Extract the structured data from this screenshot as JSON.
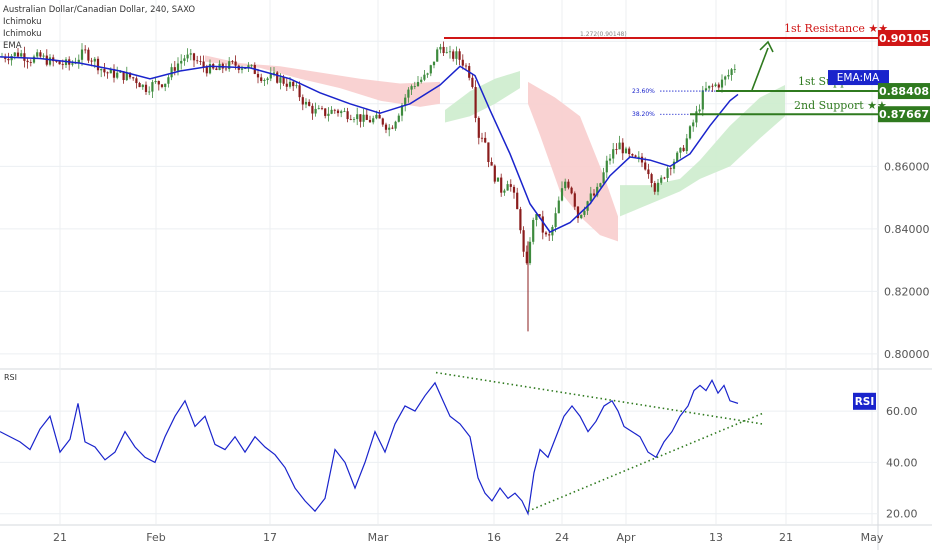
{
  "header": {
    "symbol": "Australian Dollar/Canadian Dollar, 240, SAXO",
    "indicators": [
      "Ichimoku",
      "Ichimoku",
      "EMA"
    ]
  },
  "colors": {
    "up": "#3d8a3d",
    "down": "#8a1c1c",
    "ema": "#1a24cc",
    "resistance": "#d01616",
    "support": "#2f7a1f",
    "cloud_bull": "#cdeccd",
    "cloud_bear": "#f8cdcd",
    "grid": "#eceff2",
    "axis_text": "#555555"
  },
  "chart_data": [
    {
      "type": "candlestick",
      "title": "Australian Dollar/Canadian Dollar, 240, SAXO",
      "ylim": [
        0.7955,
        0.9132
      ],
      "y_ticks": [
        "0.80000",
        "0.82000",
        "0.84000",
        "0.86000"
      ],
      "x_ticks": [
        "21",
        "Feb",
        "17",
        "Mar",
        "16",
        "24",
        "Apr",
        "13",
        "21",
        "May"
      ],
      "close_path": [
        [
          0,
          0.895
        ],
        [
          10,
          0.8955
        ],
        [
          20,
          0.8962
        ],
        [
          30,
          0.8942
        ],
        [
          40,
          0.895
        ],
        [
          50,
          0.8935
        ],
        [
          60,
          0.8928
        ],
        [
          70,
          0.8925
        ],
        [
          80,
          0.8952
        ],
        [
          85,
          0.8965
        ],
        [
          95,
          0.8935
        ],
        [
          105,
          0.89
        ],
        [
          115,
          0.8895
        ],
        [
          125,
          0.889
        ],
        [
          135,
          0.888
        ],
        [
          145,
          0.885
        ],
        [
          155,
          0.8865
        ],
        [
          165,
          0.887
        ],
        [
          175,
          0.892
        ],
        [
          185,
          0.895
        ],
        [
          195,
          0.894
        ],
        [
          205,
          0.8915
        ],
        [
          215,
          0.8905
        ],
        [
          225,
          0.892
        ],
        [
          235,
          0.8925
        ],
        [
          245,
          0.892
        ],
        [
          255,
          0.8905
        ],
        [
          265,
          0.888
        ],
        [
          275,
          0.8885
        ],
        [
          285,
          0.887
        ],
        [
          295,
          0.885
        ],
        [
          305,
          0.88
        ],
        [
          315,
          0.8775
        ],
        [
          325,
          0.877
        ],
        [
          335,
          0.878
        ],
        [
          345,
          0.877
        ],
        [
          355,
          0.8765
        ],
        [
          365,
          0.8745
        ],
        [
          375,
          0.875
        ],
        [
          382,
          0.8745
        ],
        [
          390,
          0.872
        ],
        [
          398,
          0.877
        ],
        [
          405,
          0.882
        ],
        [
          412,
          0.886
        ],
        [
          420,
          0.8875
        ],
        [
          428,
          0.889
        ],
        [
          436,
          0.896
        ],
        [
          442,
          0.899
        ],
        [
          448,
          0.895
        ],
        [
          456,
          0.8955
        ],
        [
          464,
          0.893
        ],
        [
          472,
          0.888
        ],
        [
          478,
          0.87
        ],
        [
          484,
          0.87
        ],
        [
          490,
          0.86
        ],
        [
          496,
          0.856
        ],
        [
          502,
          0.852
        ],
        [
          508,
          0.856
        ],
        [
          514,
          0.85
        ],
        [
          520,
          0.842
        ],
        [
          526,
          0.825
        ],
        [
          530,
          0.837
        ],
        [
          536,
          0.846
        ],
        [
          542,
          0.84
        ],
        [
          548,
          0.836
        ],
        [
          554,
          0.842
        ],
        [
          560,
          0.85
        ],
        [
          566,
          0.856
        ],
        [
          572,
          0.852
        ],
        [
          578,
          0.844
        ],
        [
          584,
          0.847
        ],
        [
          590,
          0.85
        ],
        [
          596,
          0.851
        ],
        [
          602,
          0.856
        ],
        [
          608,
          0.862
        ],
        [
          614,
          0.865
        ],
        [
          620,
          0.867
        ],
        [
          626,
          0.864
        ],
        [
          632,
          0.862
        ],
        [
          638,
          0.862
        ],
        [
          644,
          0.861
        ],
        [
          650,
          0.858
        ],
        [
          656,
          0.852
        ],
        [
          662,
          0.856
        ],
        [
          668,
          0.86
        ],
        [
          674,
          0.862
        ],
        [
          680,
          0.864
        ],
        [
          686,
          0.868
        ],
        [
          692,
          0.873
        ],
        [
          698,
          0.878
        ],
        [
          704,
          0.884
        ],
        [
          710,
          0.885
        ],
        [
          716,
          0.886
        ],
        [
          722,
          0.887
        ],
        [
          728,
          0.889
        ],
        [
          734,
          0.892
        ],
        [
          738,
          0.891
        ]
      ],
      "ema_path": [
        [
          0,
          0.895
        ],
        [
          40,
          0.8945
        ],
        [
          80,
          0.893
        ],
        [
          120,
          0.8905
        ],
        [
          150,
          0.888
        ],
        [
          180,
          0.8905
        ],
        [
          210,
          0.892
        ],
        [
          250,
          0.8915
        ],
        [
          290,
          0.888
        ],
        [
          320,
          0.8835
        ],
        [
          350,
          0.88
        ],
        [
          380,
          0.877
        ],
        [
          410,
          0.88
        ],
        [
          440,
          0.886
        ],
        [
          460,
          0.892
        ],
        [
          475,
          0.889
        ],
        [
          490,
          0.878
        ],
        [
          510,
          0.864
        ],
        [
          530,
          0.848
        ],
        [
          550,
          0.839
        ],
        [
          570,
          0.842
        ],
        [
          590,
          0.848
        ],
        [
          610,
          0.857
        ],
        [
          630,
          0.863
        ],
        [
          650,
          0.862
        ],
        [
          670,
          0.86
        ],
        [
          690,
          0.864
        ],
        [
          710,
          0.873
        ],
        [
          730,
          0.881
        ],
        [
          738,
          0.883
        ]
      ],
      "annotations": {
        "resistance": {
          "label": "1st Resistance ★★",
          "value": 0.90105,
          "tag": "0.90105"
        },
        "support1": {
          "label": "1st Support ★★",
          "value": 0.88408,
          "tag": "0.88408",
          "overlay": "EMA:MA"
        },
        "support2": {
          "label": "2nd Support ★★",
          "value": 0.87667,
          "tag": "0.87667"
        },
        "fib_127": "1.272(0.90148)",
        "fib_236": "23.60%",
        "fib_382": "38.20%"
      }
    },
    {
      "type": "line",
      "title": "RSI",
      "ylim": [
        16,
        76
      ],
      "y_ticks": [
        "60.00",
        "40.00",
        "20.00"
      ],
      "tag": "RSI",
      "path": [
        [
          0,
          52
        ],
        [
          10,
          50
        ],
        [
          20,
          48
        ],
        [
          30,
          45
        ],
        [
          40,
          53
        ],
        [
          50,
          58
        ],
        [
          60,
          44
        ],
        [
          70,
          49
        ],
        [
          78,
          63
        ],
        [
          85,
          48
        ],
        [
          95,
          46
        ],
        [
          105,
          41
        ],
        [
          115,
          44
        ],
        [
          125,
          52
        ],
        [
          135,
          46
        ],
        [
          145,
          42
        ],
        [
          155,
          40
        ],
        [
          165,
          50
        ],
        [
          175,
          58
        ],
        [
          185,
          64
        ],
        [
          195,
          54
        ],
        [
          205,
          58
        ],
        [
          215,
          47
        ],
        [
          225,
          45
        ],
        [
          235,
          50
        ],
        [
          245,
          44
        ],
        [
          255,
          50
        ],
        [
          265,
          46
        ],
        [
          275,
          43
        ],
        [
          285,
          38
        ],
        [
          295,
          30
        ],
        [
          305,
          25
        ],
        [
          315,
          21
        ],
        [
          325,
          26
        ],
        [
          335,
          45
        ],
        [
          345,
          40
        ],
        [
          355,
          30
        ],
        [
          365,
          40
        ],
        [
          375,
          52
        ],
        [
          385,
          44
        ],
        [
          395,
          55
        ],
        [
          405,
          62
        ],
        [
          415,
          60
        ],
        [
          425,
          66
        ],
        [
          435,
          71
        ],
        [
          443,
          64
        ],
        [
          450,
          58
        ],
        [
          460,
          55
        ],
        [
          470,
          50
        ],
        [
          478,
          34
        ],
        [
          485,
          28
        ],
        [
          492,
          25
        ],
        [
          500,
          30
        ],
        [
          508,
          26
        ],
        [
          515,
          28
        ],
        [
          522,
          25
        ],
        [
          528,
          20
        ],
        [
          534,
          36
        ],
        [
          540,
          45
        ],
        [
          548,
          42
        ],
        [
          556,
          50
        ],
        [
          564,
          58
        ],
        [
          572,
          62
        ],
        [
          580,
          58
        ],
        [
          588,
          52
        ],
        [
          596,
          56
        ],
        [
          604,
          62
        ],
        [
          612,
          64
        ],
        [
          618,
          60
        ],
        [
          624,
          54
        ],
        [
          632,
          52
        ],
        [
          640,
          50
        ],
        [
          648,
          44
        ],
        [
          656,
          42
        ],
        [
          664,
          48
        ],
        [
          672,
          52
        ],
        [
          680,
          58
        ],
        [
          688,
          62
        ],
        [
          694,
          68
        ],
        [
          700,
          70
        ],
        [
          706,
          68
        ],
        [
          712,
          72
        ],
        [
          718,
          67
        ],
        [
          724,
          70
        ],
        [
          730,
          64
        ],
        [
          738,
          63
        ]
      ]
    }
  ]
}
